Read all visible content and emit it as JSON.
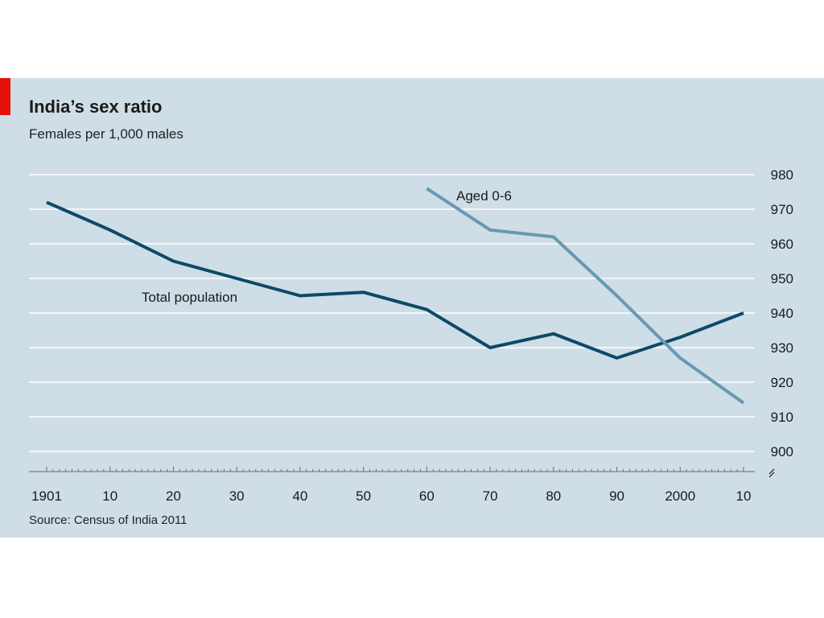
{
  "colors": {
    "background": "#cfdde6",
    "accent": "#e3120b",
    "grid": "#ffffff",
    "total_population": "#0d4a66",
    "aged_0_6": "#6799b3"
  },
  "chart_data": {
    "type": "line",
    "title": "India’s sex ratio",
    "subtitle": "Females per 1,000 males",
    "source": "Source: Census of India 2011",
    "xlabel": "",
    "ylabel": "",
    "x_tick_labels": [
      "1901",
      "10",
      "20",
      "30",
      "40",
      "50",
      "60",
      "70",
      "80",
      "90",
      "2000",
      "10"
    ],
    "x_tick_years": [
      1901,
      1911,
      1921,
      1931,
      1941,
      1951,
      1961,
      1971,
      1981,
      1991,
      2001,
      2011
    ],
    "y_ticks": [
      900,
      910,
      920,
      930,
      940,
      950,
      960,
      970,
      980
    ],
    "ylim": [
      900,
      980
    ],
    "y_axis_side": "right",
    "axis_break_below": 900,
    "grid": true,
    "series": [
      {
        "name": "Total population",
        "x": [
          1901,
          1911,
          1921,
          1931,
          1941,
          1951,
          1961,
          1971,
          1981,
          1991,
          2001,
          2011
        ],
        "values": [
          972,
          964,
          955,
          950,
          945,
          946,
          941,
          930,
          934,
          927,
          933,
          940
        ]
      },
      {
        "name": "Aged 0-6",
        "x": [
          1961,
          1971,
          1981,
          1991,
          2001,
          2011
        ],
        "values": [
          976,
          964,
          962,
          945,
          927,
          914
        ]
      }
    ]
  }
}
